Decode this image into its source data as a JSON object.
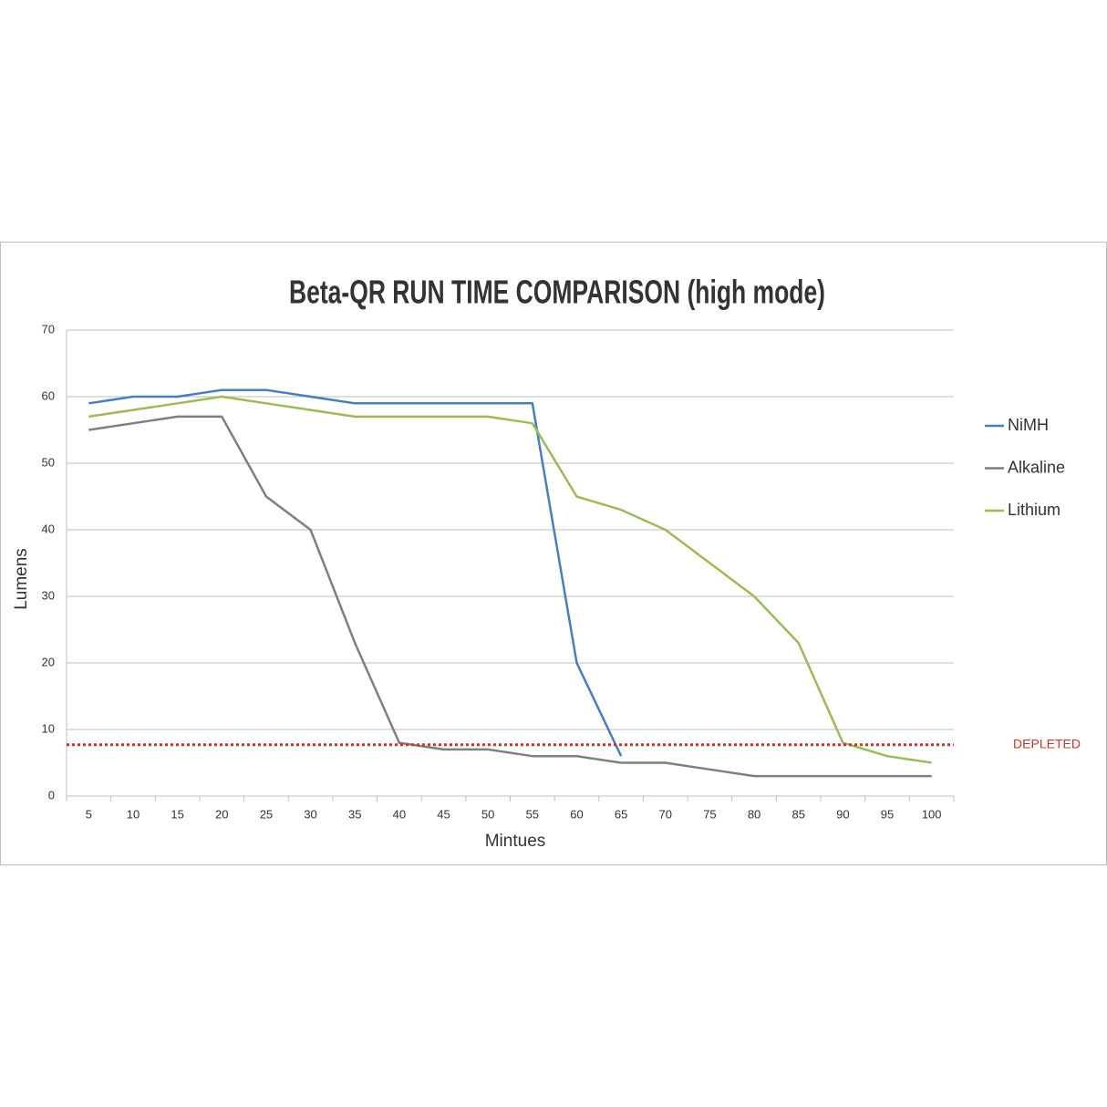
{
  "chart_data": {
    "type": "line",
    "title": "Beta-QR RUN TIME COMPARISON (high mode)",
    "x_label": "Mintues",
    "y_label": "Lumens",
    "categories": [
      "5",
      "10",
      "15",
      "20",
      "25",
      "30",
      "35",
      "40",
      "45",
      "50",
      "55",
      "60",
      "65",
      "70",
      "75",
      "80",
      "85",
      "90",
      "95",
      "100"
    ],
    "series": [
      {
        "name": "NiMH",
        "color": "#4a7ebb",
        "values": [
          59,
          60,
          60,
          61,
          61,
          60,
          59,
          59,
          59,
          59,
          59,
          20,
          6,
          null,
          null,
          null,
          null,
          null,
          null,
          null
        ]
      },
      {
        "name": "Alkaline",
        "color": "#7f7f7f",
        "values": [
          55,
          56,
          57,
          57,
          45,
          40,
          23,
          8,
          7,
          7,
          6,
          6,
          5,
          5,
          4,
          3,
          3,
          3,
          3,
          3
        ]
      },
      {
        "name": "Lithium",
        "color": "#9bbb59",
        "values": [
          57,
          58,
          59,
          60,
          59,
          58,
          57,
          57,
          57,
          57,
          56,
          45,
          43,
          40,
          35,
          30,
          23,
          8,
          6,
          5
        ]
      }
    ],
    "ylim": [
      0,
      70
    ],
    "yticks": [
      0,
      10,
      20,
      30,
      40,
      50,
      60,
      70
    ],
    "grid": true,
    "legend": "right",
    "annotation": {
      "text": "DEPLETED",
      "value": 7.7,
      "color": "#c0392b"
    }
  }
}
